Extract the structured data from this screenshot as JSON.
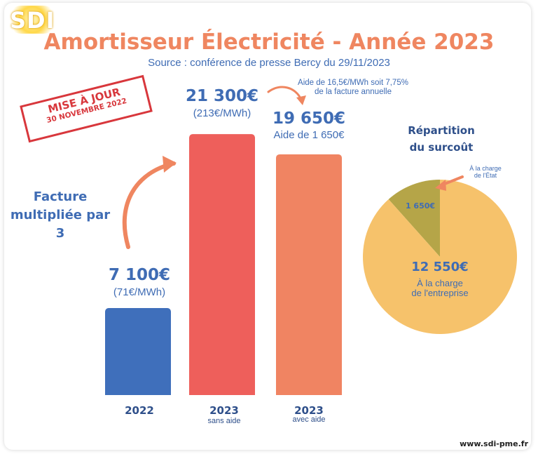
{
  "logo": "SDI",
  "header": {
    "title": "Amortisseur Électricité - Année 2023",
    "subtitle": "Source : conférence de presse Bercy du 29/11/2023"
  },
  "stamp": {
    "line1": "MISE À JOUR",
    "line2": "30 NOVEMBRE 2022"
  },
  "annotations": {
    "multiplier": [
      "Facture",
      "multipliée par 3"
    ],
    "aid_note": [
      "Aide de 16,5€/MWh soit 7,75%",
      "de la facture annuelle"
    ]
  },
  "chart_data": [
    {
      "type": "bar",
      "categories": [
        "2022",
        "2023",
        "2023"
      ],
      "category_sublabels": [
        "",
        "sans aide",
        "avec aide"
      ],
      "values": [
        7100,
        21300,
        19650
      ],
      "data_labels": [
        "7 100€",
        "21 300€",
        "19 650€"
      ],
      "data_sublabels": [
        "(71€/MWh)",
        "(213€/MWh)",
        "Aide de 1 650€"
      ],
      "colors": [
        "#3f6fbb",
        "#ee5f5b",
        "#f08462"
      ],
      "ylim": [
        0,
        24000
      ]
    },
    {
      "type": "pie",
      "title": [
        "Répartition",
        "du surcoût"
      ],
      "slices": [
        {
          "label": "À la charge de l'État",
          "label_lines": [
            "À la charge",
            "de l'État"
          ],
          "value": 1650,
          "value_label": "1 650€",
          "color": "#b5a548"
        },
        {
          "label": "À la charge de l'entreprise",
          "label_lines": [
            "À la charge",
            "de l'entreprise"
          ],
          "value": 12550,
          "value_label": "12 550€",
          "color": "#f6c26b"
        }
      ]
    }
  ],
  "footer": {
    "url": "www.sdi-pme.fr"
  },
  "colors": {
    "title": "#ef8660",
    "text_blue": "#3f6cb4",
    "dark_blue": "#2e4f8a",
    "stamp": "#d8373c",
    "arrow": "#ef8660"
  }
}
